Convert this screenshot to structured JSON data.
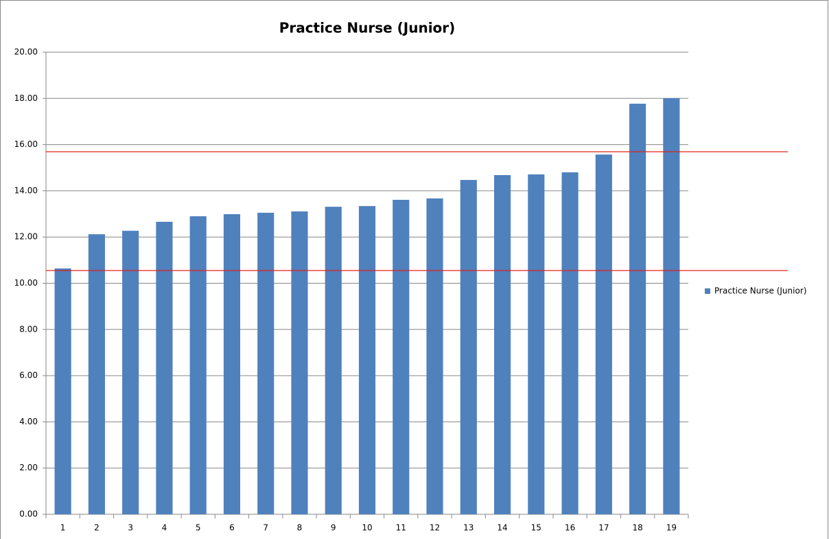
{
  "chart_data": {
    "type": "bar",
    "title": "Practice Nurse (Junior)",
    "categories": [
      "1",
      "2",
      "3",
      "4",
      "5",
      "6",
      "7",
      "8",
      "9",
      "10",
      "11",
      "12",
      "13",
      "14",
      "15",
      "16",
      "17",
      "18",
      "19"
    ],
    "series": [
      {
        "name": "Practice Nurse (Junior)",
        "color": "#4f81bd",
        "values": [
          10.64,
          12.12,
          12.27,
          12.66,
          12.9,
          12.99,
          13.05,
          13.11,
          13.31,
          13.34,
          13.61,
          13.67,
          14.47,
          14.68,
          14.71,
          14.8,
          15.57,
          17.77,
          18.01
        ]
      }
    ],
    "reference_lines": [
      15.69,
      10.55
    ],
    "reference_color": "#e0201b",
    "ylim": [
      0,
      20
    ],
    "yticks": [
      {
        "value": 0,
        "label": "0.00"
      },
      {
        "value": 2,
        "label": "2.00"
      },
      {
        "value": 4,
        "label": "4.00"
      },
      {
        "value": 6,
        "label": "6.00"
      },
      {
        "value": 8,
        "label": "8.00"
      },
      {
        "value": 10,
        "label": "10.00"
      },
      {
        "value": 12,
        "label": "12.00"
      },
      {
        "value": 14,
        "label": "14.00"
      },
      {
        "value": 16,
        "label": "16.00"
      },
      {
        "value": 18,
        "label": "18.00"
      },
      {
        "value": 20,
        "label": "20.00"
      }
    ],
    "grid": true,
    "legend": "right"
  }
}
